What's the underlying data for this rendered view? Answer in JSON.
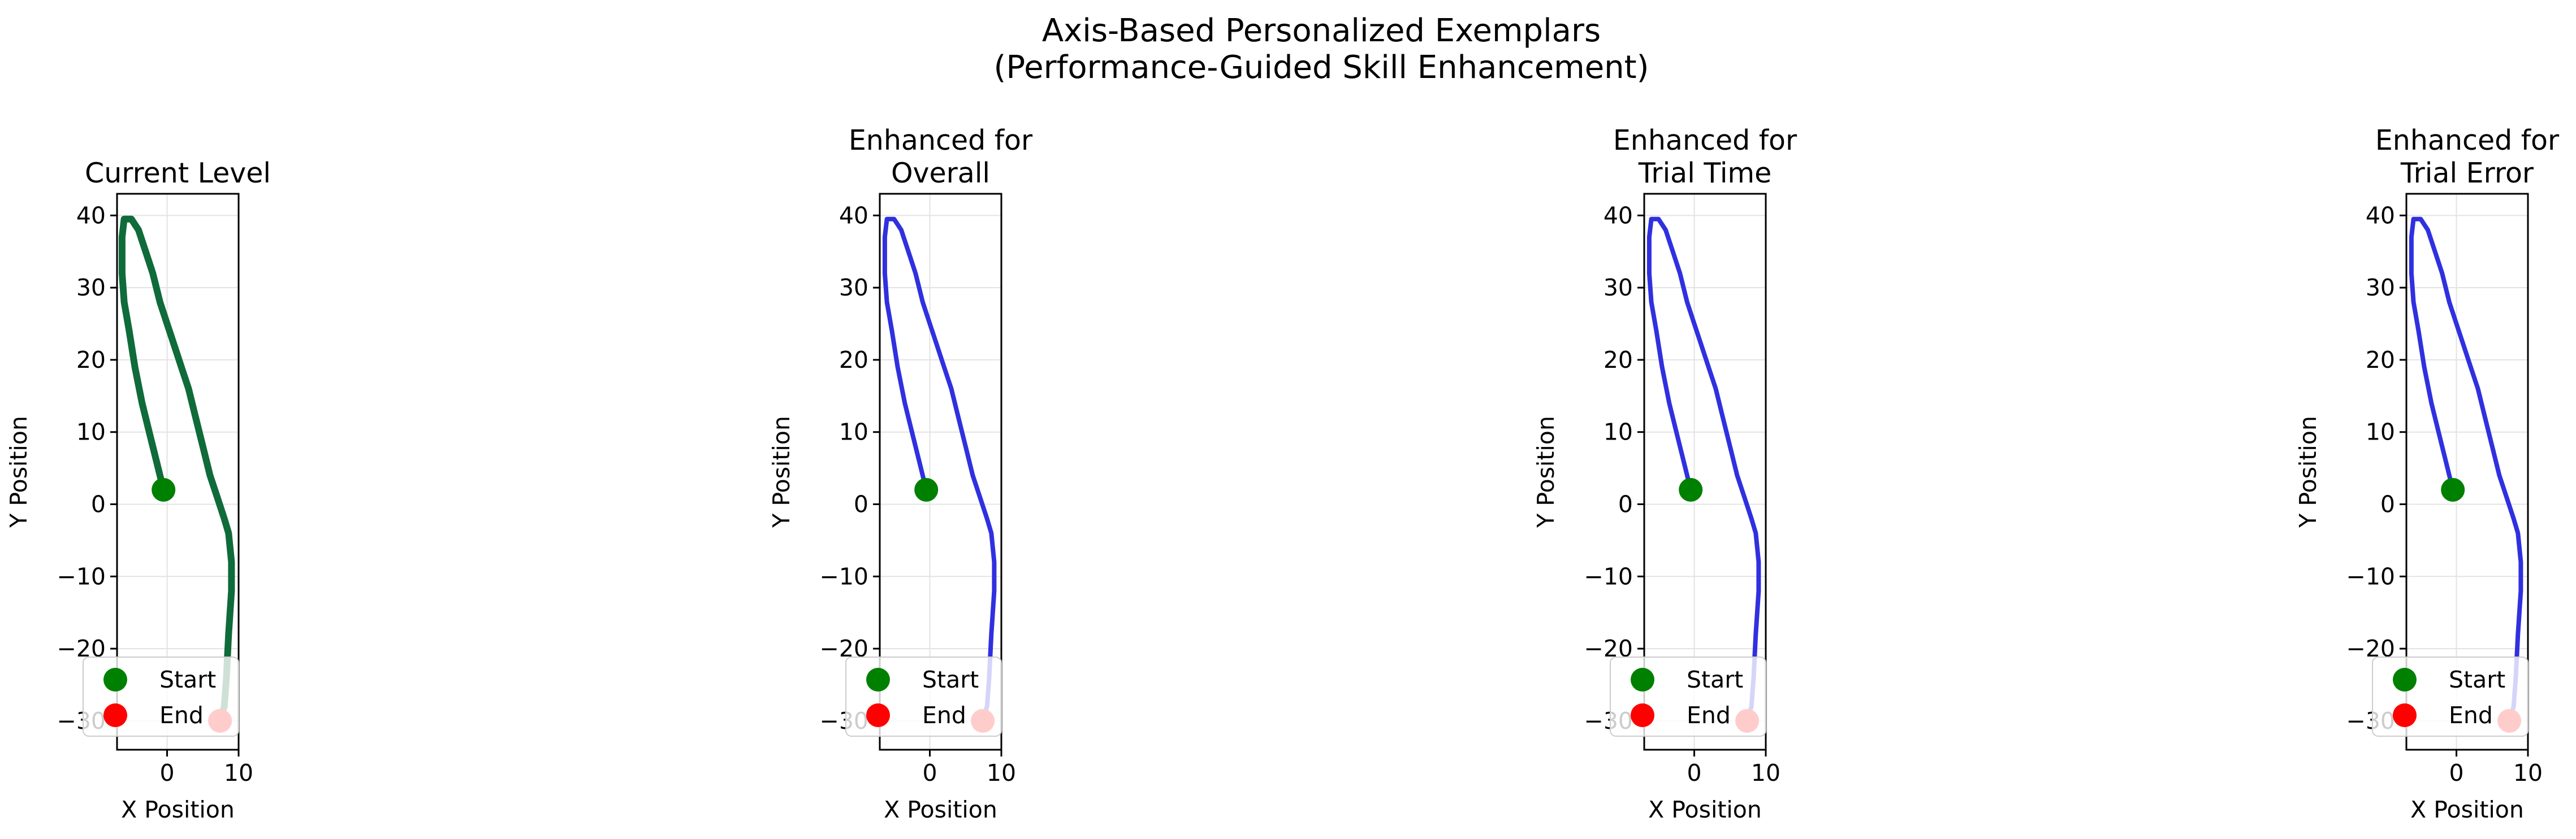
{
  "figure": {
    "title_line1": "Axis-Based Personalized Exemplars",
    "title_line2": "(Performance-Guided Skill Enhancement)"
  },
  "colors": {
    "current": "#0f6b3a",
    "enhanced": "#3030e0",
    "start_marker": "#008000",
    "end_marker": "#ff0000",
    "grid": "#e3e3e3"
  },
  "chart_data": [
    {
      "type": "line",
      "title_lines": [
        "Current Level"
      ],
      "xlabel": "X Position",
      "ylabel": "Y Position",
      "xlim": [
        -7,
        10
      ],
      "ylim": [
        -34,
        43
      ],
      "xticks": [
        0,
        10
      ],
      "yticks": [
        -30,
        -20,
        -10,
        0,
        10,
        20,
        30,
        40
      ],
      "grid": true,
      "legend": {
        "position": "lower-left",
        "entries": [
          "Start",
          "End"
        ]
      },
      "series": [
        {
          "x": [
            -0.5,
            -1.5,
            -2.5,
            -3.5,
            -4.5,
            -5.3,
            -6.0,
            -6.3,
            -6.3,
            -6.0,
            -5.0,
            -4.0,
            -3.0,
            -2.0,
            -1.0,
            0.0,
            1.0,
            2.0,
            3.0,
            4.0,
            5.0,
            6.0,
            7.0,
            8.0,
            8.6,
            9.0,
            9.0,
            8.6,
            8.3,
            8.0,
            7.4
          ],
          "y": [
            2,
            6,
            10,
            14,
            19,
            24,
            28,
            32,
            37,
            39.5,
            39.5,
            38,
            35,
            32,
            28,
            25,
            22,
            19,
            16,
            12,
            8,
            4,
            1,
            -2,
            -4,
            -8,
            -12,
            -18,
            -24,
            -28,
            -30
          ]
        }
      ],
      "start": {
        "x": -0.5,
        "y": 2
      },
      "end": {
        "x": 7.4,
        "y": -30
      }
    },
    {
      "type": "line",
      "title_lines": [
        "Enhanced for",
        "Overall"
      ],
      "xlabel": "X Position",
      "ylabel": "Y Position",
      "xlim": [
        -7,
        10
      ],
      "ylim": [
        -34,
        43
      ],
      "xticks": [
        0,
        10
      ],
      "yticks": [
        -30,
        -20,
        -10,
        0,
        10,
        20,
        30,
        40
      ],
      "grid": true,
      "legend": {
        "position": "lower-left",
        "entries": [
          "Start",
          "End"
        ]
      },
      "series": [
        {
          "x": [
            -0.5,
            -1.5,
            -2.5,
            -3.5,
            -4.5,
            -5.3,
            -6.0,
            -6.3,
            -6.3,
            -6.0,
            -5.0,
            -4.0,
            -3.0,
            -2.0,
            -1.0,
            0.0,
            1.0,
            2.0,
            3.0,
            4.0,
            5.0,
            6.0,
            7.0,
            8.0,
            8.6,
            9.0,
            9.0,
            8.6,
            8.3,
            8.0,
            7.4
          ],
          "y": [
            2,
            6,
            10,
            14,
            19,
            24,
            28,
            32,
            37,
            39.5,
            39.5,
            38,
            35,
            32,
            28,
            25,
            22,
            19,
            16,
            12,
            8,
            4,
            1,
            -2,
            -4,
            -8,
            -12,
            -18,
            -24,
            -28,
            -30
          ]
        }
      ],
      "start": {
        "x": -0.5,
        "y": 2
      },
      "end": {
        "x": 7.4,
        "y": -30
      }
    },
    {
      "type": "line",
      "title_lines": [
        "Enhanced for",
        "Trial Time"
      ],
      "xlabel": "X Position",
      "ylabel": "Y Position",
      "xlim": [
        -7,
        10
      ],
      "ylim": [
        -34,
        43
      ],
      "xticks": [
        0,
        10
      ],
      "yticks": [
        -30,
        -20,
        -10,
        0,
        10,
        20,
        30,
        40
      ],
      "grid": true,
      "legend": {
        "position": "lower-left",
        "entries": [
          "Start",
          "End"
        ]
      },
      "series": [
        {
          "x": [
            -0.5,
            -1.5,
            -2.5,
            -3.5,
            -4.5,
            -5.3,
            -6.0,
            -6.3,
            -6.3,
            -6.0,
            -5.0,
            -4.0,
            -3.0,
            -2.0,
            -1.0,
            0.0,
            1.0,
            2.0,
            3.0,
            4.0,
            5.0,
            6.0,
            7.0,
            8.0,
            8.6,
            9.0,
            9.0,
            8.6,
            8.3,
            8.0,
            7.4
          ],
          "y": [
            2,
            6,
            10,
            14,
            19,
            24,
            28,
            32,
            37,
            39.5,
            39.5,
            38,
            35,
            32,
            28,
            25,
            22,
            19,
            16,
            12,
            8,
            4,
            1,
            -2,
            -4,
            -8,
            -12,
            -18,
            -24,
            -28,
            -30
          ]
        }
      ],
      "start": {
        "x": -0.5,
        "y": 2
      },
      "end": {
        "x": 7.4,
        "y": -30
      }
    },
    {
      "type": "line",
      "title_lines": [
        "Enhanced for",
        "Trial Error"
      ],
      "xlabel": "X Position",
      "ylabel": "Y Position",
      "xlim": [
        -7,
        10
      ],
      "ylim": [
        -34,
        43
      ],
      "xticks": [
        0,
        10
      ],
      "yticks": [
        -30,
        -20,
        -10,
        0,
        10,
        20,
        30,
        40
      ],
      "grid": true,
      "legend": {
        "position": "lower-left",
        "entries": [
          "Start",
          "End"
        ]
      },
      "series": [
        {
          "x": [
            -0.5,
            -1.5,
            -2.5,
            -3.5,
            -4.5,
            -5.3,
            -6.0,
            -6.3,
            -6.3,
            -6.0,
            -5.0,
            -4.0,
            -3.0,
            -2.0,
            -1.0,
            0.0,
            1.0,
            2.0,
            3.0,
            4.0,
            5.0,
            6.0,
            7.0,
            8.0,
            8.6,
            9.0,
            9.0,
            8.6,
            8.3,
            8.0,
            7.4
          ],
          "y": [
            2,
            6,
            10,
            14,
            19,
            24,
            28,
            32,
            37,
            39.5,
            39.5,
            38,
            35,
            32,
            28,
            25,
            22,
            19,
            16,
            12,
            8,
            4,
            1,
            -2,
            -4,
            -8,
            -12,
            -18,
            -24,
            -28,
            -30
          ]
        }
      ],
      "start": {
        "x": -0.5,
        "y": 2
      },
      "end": {
        "x": 7.4,
        "y": -30
      }
    }
  ]
}
